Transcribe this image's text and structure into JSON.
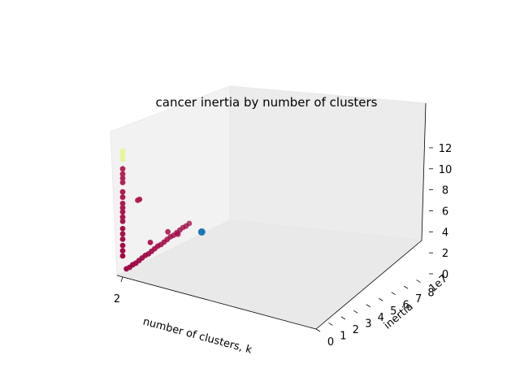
{
  "chart_data": {
    "type": "scatter",
    "projection": "3d",
    "title": "cancer inertia by number of clusters",
    "xlabel": "number of clusters, k",
    "ylabel": "inertia",
    "zlabel": "",
    "y_offset_text": "1e7",
    "x_ticks": [
      "2"
    ],
    "y_ticks": [
      "0",
      "1",
      "2",
      "3",
      "4",
      "5",
      "6",
      "7",
      "8"
    ],
    "z_ticks": [
      "0",
      "2",
      "4",
      "6",
      "8",
      "10",
      "12"
    ],
    "grid": true,
    "colors": {
      "low": "#9e0142",
      "high": "#e6f598",
      "highlight": "#1f77b4",
      "pane": "#f2f2f2"
    },
    "series": [
      {
        "color_by": "z",
        "points": [
          [
            2,
            0.3,
            0.6
          ],
          [
            2,
            0.55,
            0.6
          ],
          [
            2,
            0.8,
            0.7
          ],
          [
            2,
            1.05,
            0.7
          ],
          [
            2,
            1.3,
            0.8
          ],
          [
            2,
            1.55,
            0.9
          ],
          [
            2,
            1.8,
            1.0
          ],
          [
            2,
            2.05,
            1.0
          ],
          [
            2,
            2.3,
            1.1
          ],
          [
            2,
            2.55,
            1.2
          ],
          [
            2,
            2.8,
            1.3
          ],
          [
            2,
            3.05,
            1.3
          ],
          [
            2,
            3.3,
            1.4
          ],
          [
            2,
            3.55,
            1.5
          ],
          [
            2,
            3.8,
            1.6
          ],
          [
            2,
            4.05,
            1.6
          ],
          [
            2,
            4.3,
            1.7
          ],
          [
            2,
            4.55,
            1.8
          ],
          [
            2,
            4.8,
            1.9
          ],
          [
            2,
            5.05,
            1.9
          ],
          [
            2,
            5.3,
            2.0
          ],
          [
            2,
            1.2,
            6.6
          ],
          [
            2,
            1.35,
            6.6
          ],
          [
            2,
            2.2,
            2.0
          ],
          [
            2,
            3.6,
            2.2
          ],
          [
            2,
            4.4,
            1.5
          ],
          [
            2,
            0.0,
            2.0
          ],
          [
            2,
            0.0,
            2.5
          ],
          [
            2,
            0.0,
            3.0
          ],
          [
            2,
            0.0,
            3.6
          ],
          [
            2,
            0.0,
            4.1
          ],
          [
            2,
            0.0,
            4.6
          ],
          [
            2,
            0.0,
            5.3
          ],
          [
            2,
            0.0,
            5.7
          ],
          [
            2,
            0.0,
            6.2
          ],
          [
            2,
            0.0,
            6.6
          ],
          [
            2,
            0.0,
            7.0
          ],
          [
            2,
            0.0,
            7.6
          ],
          [
            2,
            0.0,
            8.1
          ],
          [
            2,
            0.0,
            9.0
          ],
          [
            2,
            0.0,
            9.4
          ],
          [
            2,
            0.0,
            9.8
          ],
          [
            2,
            0.0,
            10.3
          ],
          [
            2,
            0.0,
            11.2
          ],
          [
            2,
            0.0,
            11.6
          ],
          [
            2,
            0.0,
            12.0
          ]
        ]
      }
    ],
    "highlight": [
      2,
      6.3,
      0.6
    ]
  }
}
